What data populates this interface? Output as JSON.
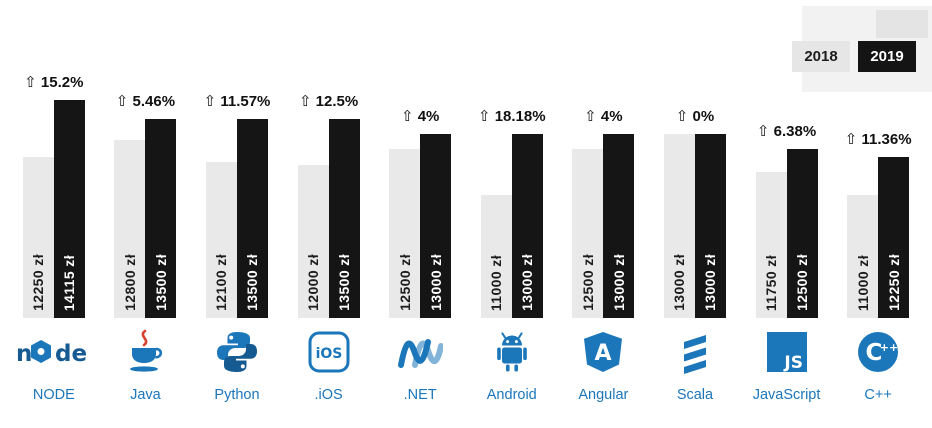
{
  "legend": {
    "items": [
      {
        "label": "2018"
      },
      {
        "label": "2019"
      }
    ]
  },
  "colors": {
    "bar_2018": "#e9e9e9",
    "bar_2019": "#151515",
    "value_on_2018": "#1d1d1d",
    "value_on_2019": "#ffffff",
    "tech_blue": "#1b76ba",
    "percent_text": "#111111"
  },
  "percent_arrow": "⇧",
  "chart_data": {
    "type": "bar",
    "title": "",
    "xlabel": "",
    "ylabel": "",
    "categories": [
      "NODE",
      "Java",
      "Python",
      ".iOS",
      ".NET",
      "Android",
      "Angular",
      "Scala",
      "JavaScript",
      "C++"
    ],
    "series": [
      {
        "name": "2018",
        "values": [
          12250,
          12800,
          12100,
          12000,
          12500,
          11000,
          12500,
          13000,
          11750,
          11000
        ],
        "color": "#e9e9e9"
      },
      {
        "name": "2019",
        "values": [
          14115,
          13500,
          13500,
          13500,
          13000,
          13000,
          13000,
          13000,
          12500,
          12250
        ],
        "color": "#151515"
      }
    ],
    "percent_change": [
      "15.2%",
      "5.46%",
      "11.57%",
      "12.5%",
      "4%",
      "18.18%",
      "4%",
      "0%",
      "6.38%",
      "11.36%"
    ],
    "value_suffix": " zł",
    "ylim": [
      7000,
      14500
    ],
    "legend_position": "top-right",
    "grid": false
  },
  "logo_icons": [
    "node-logo",
    "java-logo",
    "python-logo",
    "ios-logo",
    "dotnet-logo",
    "android-logo",
    "angular-logo",
    "scala-logo",
    "javascript-logo",
    "cpp-logo"
  ]
}
